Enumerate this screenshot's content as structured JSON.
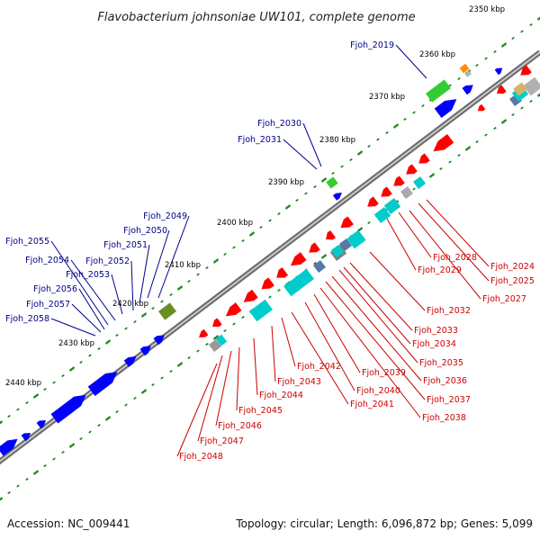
{
  "title": "Flavobacterium johnsoniae UW101, complete genome",
  "footer": {
    "accession": "Accession: NC_009441",
    "summary": "Topology: circular; Length: 6,096,872 bp; Genes: 5,099"
  },
  "colors": {
    "forward_cds": "#0000ff",
    "reverse_cds": "#ff0000",
    "forward_label": "#00008b",
    "reverse_label": "#cc0000",
    "backbone": "#888888",
    "tick": "#228b22",
    "cyan_feature": "#00cccc",
    "green_feature": "#33cc33"
  },
  "scale": [
    "2350 kbp",
    "2360 kbp",
    "2370 kbp",
    "2380 kbp",
    "2390 kbp",
    "2400 kbp",
    "2410 kbp",
    "2420 kbp",
    "2430 kbp",
    "2440 kbp"
  ],
  "forward_labels": [
    "Fjoh_2019",
    "Fjoh_2030",
    "Fjoh_2031",
    "Fjoh_2049",
    "Fjoh_2050",
    "Fjoh_2051",
    "Fjoh_2052",
    "Fjoh_2053",
    "Fjoh_2054",
    "Fjoh_2055",
    "Fjoh_2056",
    "Fjoh_2057",
    "Fjoh_2058"
  ],
  "reverse_labels": [
    "Fjoh_2024",
    "Fjoh_2025",
    "Fjoh_2027",
    "Fjoh_2028",
    "Fjoh_2029",
    "Fjoh_2032",
    "Fjoh_2033",
    "Fjoh_2034",
    "Fjoh_2035",
    "Fjoh_2036",
    "Fjoh_2037",
    "Fjoh_2038",
    "Fjoh_2039",
    "Fjoh_2040",
    "Fjoh_2041",
    "Fjoh_2042",
    "Fjoh_2043",
    "Fjoh_2044",
    "Fjoh_2045",
    "Fjoh_2046",
    "Fjoh_2047",
    "Fjoh_2048"
  ]
}
